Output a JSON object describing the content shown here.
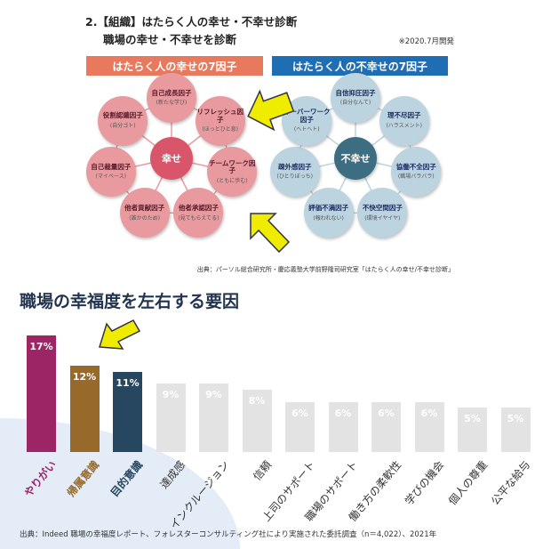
{
  "header": {
    "title1": "2.【組織】はたらく人の幸せ・不幸せ診断",
    "title2": "職場の幸せ・不幸せを診断",
    "note": "※2020.7月開発"
  },
  "happy": {
    "banner": "はたらく人の幸せの7因子",
    "center": "幸せ",
    "color": "#e8795c",
    "nodes": [
      {
        "name": "自己成長因子",
        "sub": "(新たな学び)"
      },
      {
        "name": "リフレッシュ因子",
        "sub": "(ほっとひと息)"
      },
      {
        "name": "チームワーク因子",
        "sub": "(ともに歩む)"
      },
      {
        "name": "他者承認因子",
        "sub": "(見てもらえてる)"
      },
      {
        "name": "他者貢献因子",
        "sub": "(誰かのため)"
      },
      {
        "name": "自己裁量因子",
        "sub": "(マイペース)"
      },
      {
        "name": "役割認識因子",
        "sub": "(自分ゴト)"
      }
    ]
  },
  "unhappy": {
    "banner": "はたらく人の不幸せの7因子",
    "center": "不幸せ",
    "color": "#1f6db3",
    "nodes": [
      {
        "name": "自信抑圧因子",
        "sub": "(自分なんて)"
      },
      {
        "name": "理不尽因子",
        "sub": "(ハラスメント)"
      },
      {
        "name": "協働不全因子",
        "sub": "(職場バラバラ)"
      },
      {
        "name": "不快空間因子",
        "sub": "(環境イヤイヤ)"
      },
      {
        "name": "評価不満因子",
        "sub": "(報われない)"
      },
      {
        "name": "疎外感因子",
        "sub": "(ひとりぼっち)"
      },
      {
        "name": "オーバーワーク因子",
        "sub": "(ヘトヘト)"
      }
    ]
  },
  "source1": "出典：パーソル総合研究所・慶応義塾大学前野隆司研究室「はたらく人の幸せ/不幸せ診断」",
  "chart_data": {
    "type": "bar",
    "title": "職場の幸福度を左右する要因",
    "ylabel": "",
    "xlabel": "",
    "categories": [
      "やりがい",
      "帰属意識",
      "目的意識",
      "達成感",
      "インクルージョン",
      "信頼",
      "上司のサポート",
      "職場のサポート",
      "働き方の柔軟性",
      "学びの機会",
      "個人の尊重",
      "公平な給与"
    ],
    "values": [
      17,
      12,
      11,
      9,
      9,
      8,
      6,
      6,
      6,
      6,
      5,
      5
    ],
    "value_labels": [
      "17%",
      "12%",
      "11%",
      "9%",
      "9%",
      "8%",
      "6%",
      "6%",
      "6%",
      "6%",
      "5%",
      "5%"
    ],
    "colors": [
      "#9c2566",
      "#97692b",
      "#27465f",
      "#e3e3e3",
      "#e3e3e3",
      "#e3e3e3",
      "#e3e3e3",
      "#e3e3e3",
      "#e3e3e3",
      "#e3e3e3",
      "#e3e3e3",
      "#e3e3e3"
    ],
    "label_colors": [
      "#9c2566",
      "#97692b",
      "#27465f",
      "#333",
      "#333",
      "#333",
      "#333",
      "#333",
      "#333",
      "#333",
      "#333",
      "#333"
    ]
  },
  "footer": "出典：Indeed 職場の幸福度レポート、フォレスターコンサルティング社により実施された委託調査（n＝4,022）、2021年"
}
